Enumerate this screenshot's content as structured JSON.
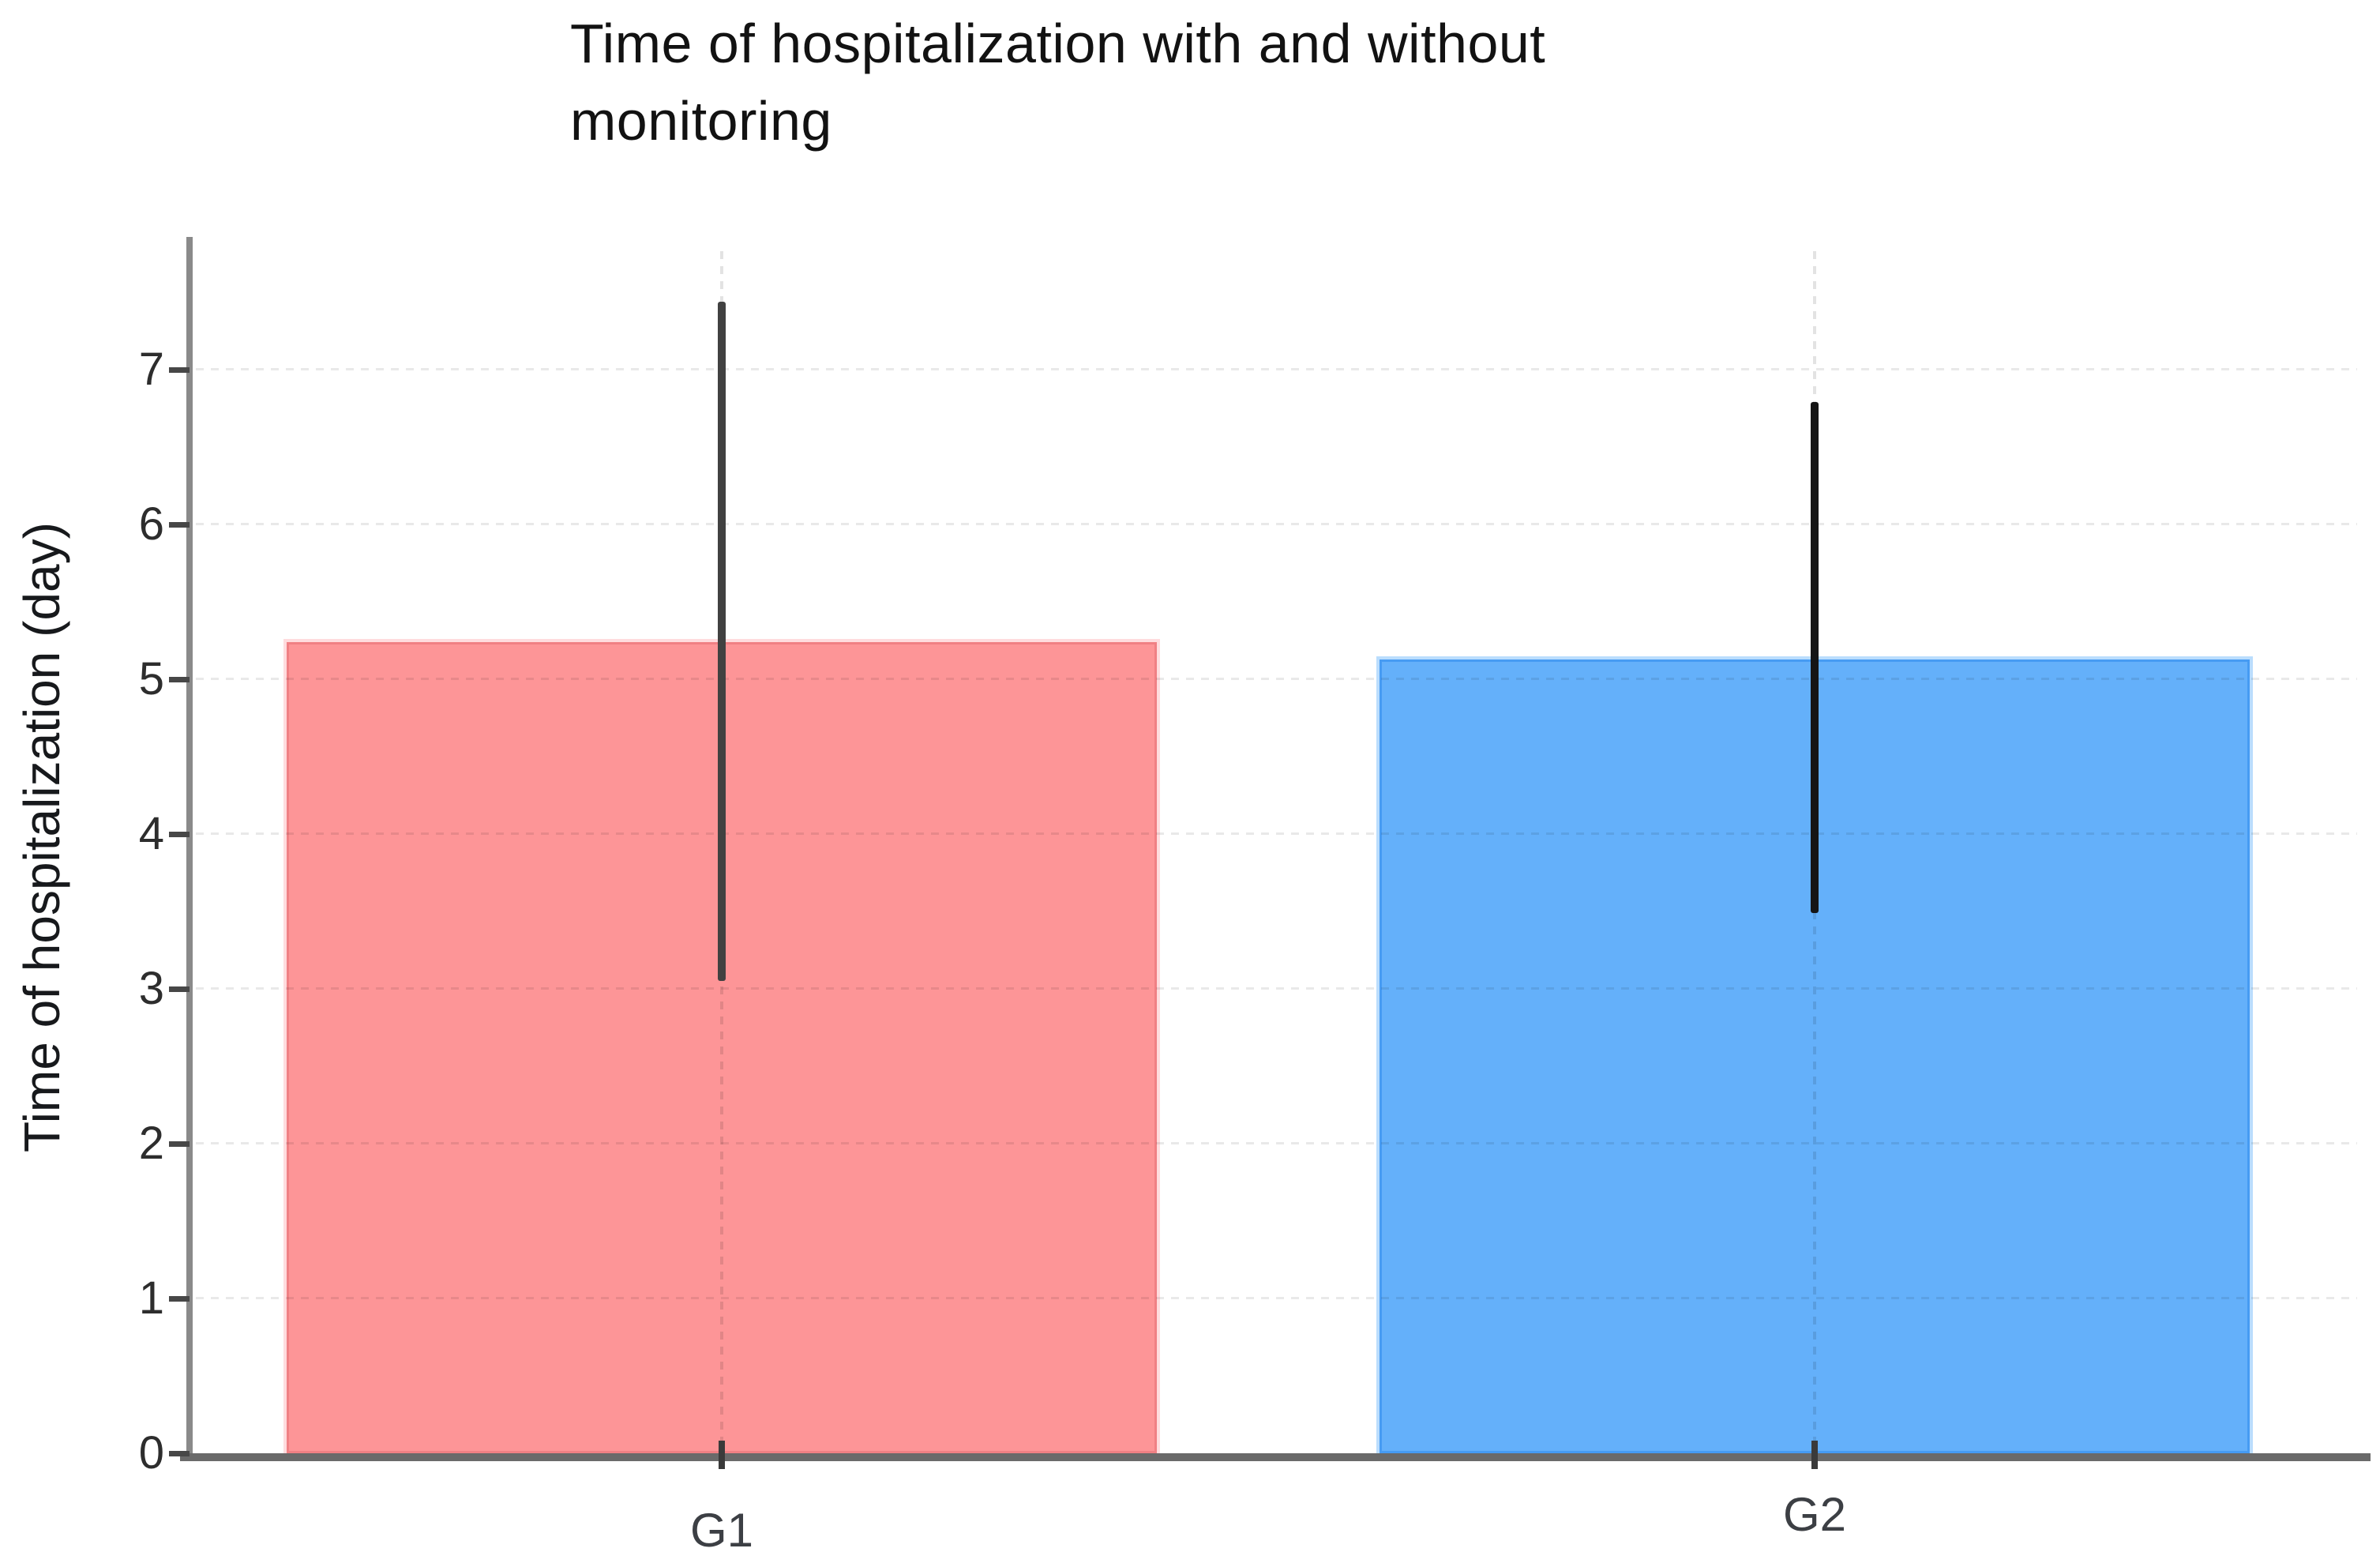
{
  "chart_data": {
    "type": "bar",
    "title": "Time of hospitalization with and without monitoring",
    "title_lines": [
      "Time of hospitalization with and without",
      "monitoring"
    ],
    "ylabel": "Time of hospitalization (day)",
    "xlabel": "",
    "categories": [
      "G1",
      "G2"
    ],
    "series": [
      {
        "name": "G1",
        "value": 5.24,
        "error_low": 3.05,
        "error_high": 7.44,
        "color": "#fd9597",
        "border_color": "#f08084",
        "halo_color": "rgba(255,216,218,0.9)",
        "error_color": "#414141"
      },
      {
        "name": "G2",
        "value": 5.13,
        "error_low": 3.49,
        "error_high": 6.79,
        "color": "#64b0fa",
        "border_color": "#469bf3",
        "halo_color": "rgba(178,217,253,0.9)",
        "error_color": "#151515"
      }
    ],
    "yticks": [
      0,
      1,
      2,
      3,
      4,
      5,
      6,
      7
    ],
    "ylim": [
      0,
      7.8
    ],
    "grid": "horizontal-dashed",
    "legend": "none"
  },
  "colors": {
    "bar_g1": "#fd9597",
    "bar_g2": "#64b0fa",
    "axis": "#6a6a6a",
    "tick_label": "#2d2d2d",
    "title_text": "#121212"
  }
}
